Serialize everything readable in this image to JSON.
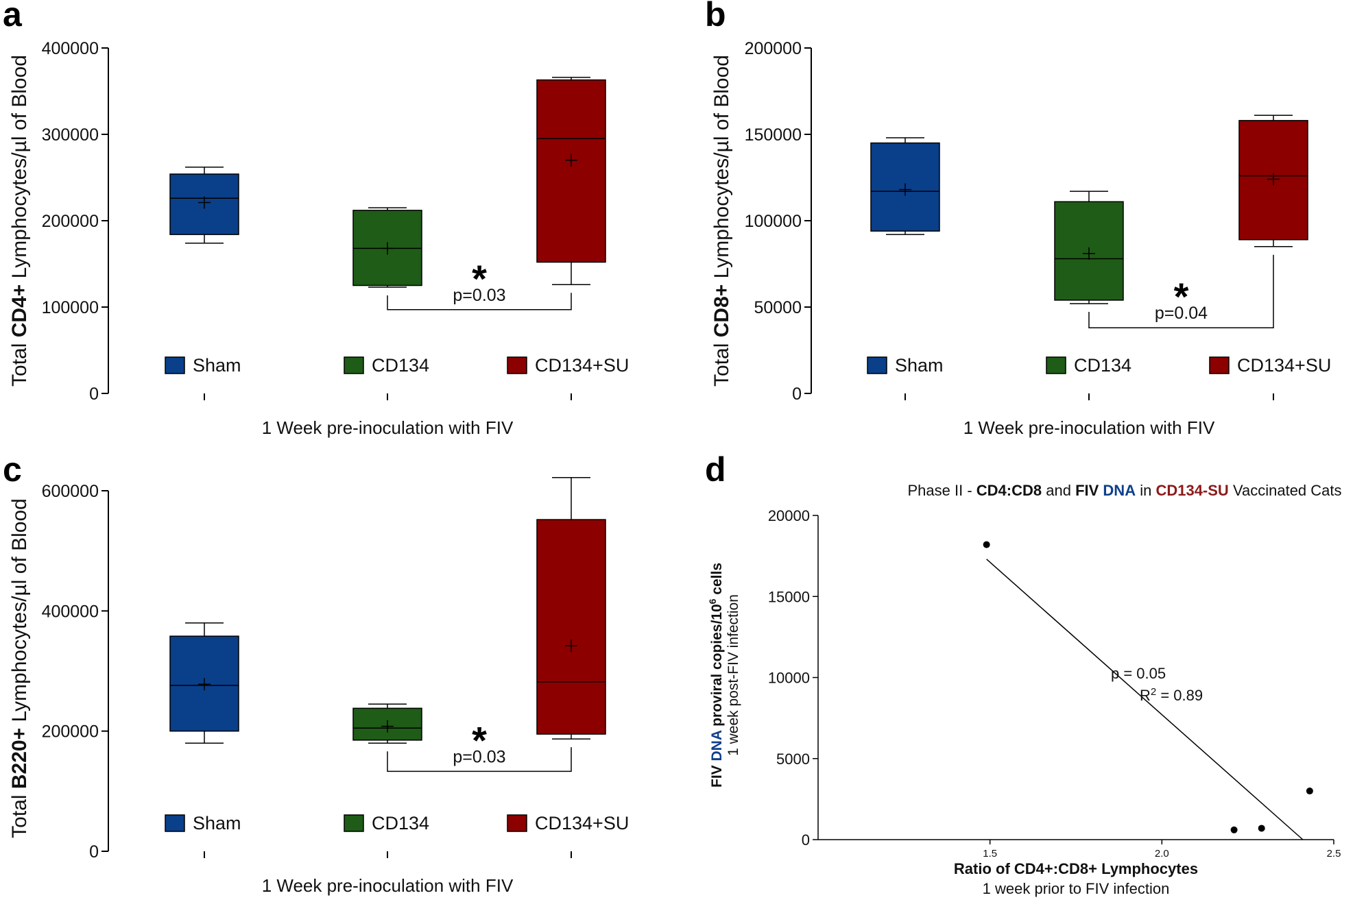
{
  "colors": {
    "sham": "#0a3f8a",
    "cd134": "#1f5c17",
    "cd134su": "#8c0000",
    "dna_blue": "#0e3f8c",
    "su_red": "#8c1a1a"
  },
  "legend": [
    "Sham",
    "CD134",
    "CD134+SU"
  ],
  "chart_data": [
    {
      "type": "box",
      "panel": "a",
      "ylabel_prefix": "Total ",
      "ylabel_bold": "CD4+",
      "ylabel_suffix": " Lymphocytes/µl of Blood",
      "xlabel": "1 Week pre-inoculation with FIV",
      "ylim": [
        0,
        400000
      ],
      "yticks": [
        {
          "v": 0,
          "label": "0"
        },
        {
          "v": 100000,
          "label": "100000"
        },
        {
          "v": 200000,
          "label": "200000"
        },
        {
          "v": 300000,
          "label": "300000"
        },
        {
          "v": 400000,
          "label": "400000"
        }
      ],
      "groups": [
        {
          "name": "Sham",
          "min": 174000,
          "q1": 184000,
          "median": 226000,
          "q3": 254000,
          "max": 262000,
          "mean": 221000
        },
        {
          "name": "CD134",
          "min": 123000,
          "q1": 125000,
          "median": 168000,
          "q3": 212000,
          "max": 215000,
          "mean": 168000
        },
        {
          "name": "CD134+SU",
          "min": 126000,
          "q1": 152000,
          "median": 295000,
          "q3": 363000,
          "max": 366000,
          "mean": 270000
        }
      ],
      "significance": {
        "from": 1,
        "to": 2,
        "y": 97000,
        "star": "*",
        "label": "p=0.03"
      }
    },
    {
      "type": "box",
      "panel": "b",
      "ylabel_prefix": "Total ",
      "ylabel_bold": "CD8+",
      "ylabel_suffix": " Lymphocytes/µl of Blood",
      "xlabel": "1 Week pre-inoculation with FIV",
      "ylim": [
        0,
        200000
      ],
      "yticks": [
        {
          "v": 0,
          "label": "0"
        },
        {
          "v": 50000,
          "label": "50000"
        },
        {
          "v": 100000,
          "label": "100000"
        },
        {
          "v": 150000,
          "label": "150000"
        },
        {
          "v": 200000,
          "label": "200000"
        }
      ],
      "groups": [
        {
          "name": "Sham",
          "min": 92000,
          "q1": 94000,
          "median": 117000,
          "q3": 145000,
          "max": 148000,
          "mean": 118000
        },
        {
          "name": "CD134",
          "min": 52000,
          "q1": 54000,
          "median": 78000,
          "q3": 111000,
          "max": 117000,
          "mean": 81000
        },
        {
          "name": "CD134+SU",
          "min": 85000,
          "q1": 89000,
          "median": 126000,
          "q3": 158000,
          "max": 161000,
          "mean": 124000
        }
      ],
      "significance": {
        "from": 1,
        "to": 2,
        "y": 38000,
        "star": "*",
        "label": "p=0.04"
      }
    },
    {
      "type": "box",
      "panel": "c",
      "ylabel_prefix": "Total ",
      "ylabel_bold": "B220+",
      "ylabel_suffix": " Lymphocytes/µl of Blood",
      "xlabel": "1 Week pre-inoculation with FIV",
      "ylim": [
        0,
        600000
      ],
      "yticks": [
        {
          "v": 0,
          "label": "0"
        },
        {
          "v": 200000,
          "label": "200000"
        },
        {
          "v": 400000,
          "label": "400000"
        },
        {
          "v": 600000,
          "label": "600000"
        }
      ],
      "groups": [
        {
          "name": "Sham",
          "min": 180000,
          "q1": 200000,
          "median": 276000,
          "q3": 358000,
          "max": 380000,
          "mean": 278000
        },
        {
          "name": "CD134",
          "min": 180000,
          "q1": 185000,
          "median": 205000,
          "q3": 238000,
          "max": 245000,
          "mean": 208000
        },
        {
          "name": "CD134+SU",
          "min": 187000,
          "q1": 195000,
          "median": 282000,
          "q3": 552000,
          "max": 622000,
          "mean": 342000
        }
      ],
      "significance": {
        "from": 1,
        "to": 2,
        "y": 133000,
        "star": "*",
        "label": "p=0.03"
      }
    },
    {
      "type": "scatter",
      "panel": "d",
      "title_parts": [
        {
          "t": "Phase II - ",
          "bold": false,
          "color": "#111111"
        },
        {
          "t": "CD4:CD8",
          "bold": true,
          "color": "#111111"
        },
        {
          "t": " and ",
          "bold": false,
          "color": "#111111"
        },
        {
          "t": "FIV",
          "bold": true,
          "color": "#111111"
        },
        {
          "t": " ",
          "bold": false,
          "color": "#111111"
        },
        {
          "t": "DNA",
          "bold": true,
          "color": "#0e3f8c"
        },
        {
          "t": " in ",
          "bold": false,
          "color": "#111111"
        },
        {
          "t": "CD134-SU",
          "bold": true,
          "color": "#8c1a1a"
        },
        {
          "t": " Vaccinated Cats",
          "bold": false,
          "color": "#111111"
        }
      ],
      "ylabel_line1": {
        "fiv": "FIV ",
        "dna": "DNA",
        "rest": " proviral copies/10",
        "sup": "6",
        "end": " cells"
      },
      "ylabel_line2": "1 week post-FIV infection",
      "xlabel_line1": "Ratio of CD4+:CD8+ Lymphocytes",
      "xlabel_line2": "1 week prior to FIV infection",
      "xlim": [
        1.0,
        2.5
      ],
      "ylim": [
        0,
        20000
      ],
      "xticks": [
        {
          "v": 1.5,
          "label": "1.5"
        },
        {
          "v": 2.0,
          "label": "2.0"
        },
        {
          "v": 2.5,
          "label": "2.5"
        }
      ],
      "yticks": [
        {
          "v": 0,
          "label": "0"
        },
        {
          "v": 5000,
          "label": "5000"
        },
        {
          "v": 10000,
          "label": "10000"
        },
        {
          "v": 15000,
          "label": "15000"
        },
        {
          "v": 20000,
          "label": "20000"
        }
      ],
      "points": [
        {
          "x": 1.49,
          "y": 18200
        },
        {
          "x": 2.21,
          "y": 600
        },
        {
          "x": 2.29,
          "y": 700
        },
        {
          "x": 2.43,
          "y": 3000
        }
      ],
      "fit": {
        "x1": 1.49,
        "y1": 17300,
        "x2": 2.41,
        "y2": 0
      },
      "annotation_p": "p = 0.05",
      "annotation_r2": {
        "base": "R",
        "sup": "2",
        "rest": " = 0.89"
      }
    }
  ]
}
